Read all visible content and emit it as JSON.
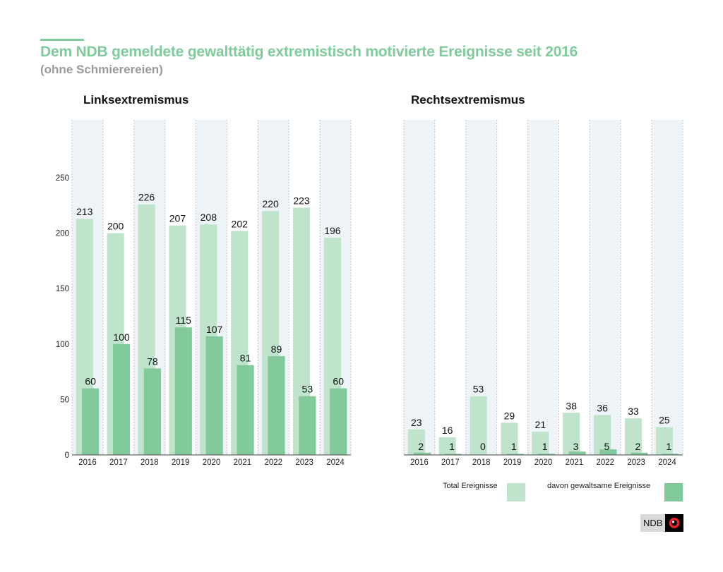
{
  "header": {
    "title": "Dem NDB gemeldete gewalttätig extremistisch motivierte Ereignisse seit 2016",
    "subtitle": "(ohne Schmierereien)"
  },
  "colors": {
    "accent": "#7fcb9b",
    "total": "#bfe3cb",
    "violent": "#82c99c",
    "band": "#eef3f7",
    "subtitle": "#9a9a9a"
  },
  "legend": {
    "total_label": "Total Ereignisse",
    "violent_label": "davon gewaltsame Ereignisse"
  },
  "logo": {
    "text": "NDB"
  },
  "chart_data": [
    {
      "type": "bar",
      "title": "Linksextremismus",
      "categories": [
        "2016",
        "2017",
        "2018",
        "2019",
        "2020",
        "2021",
        "2022",
        "2023",
        "2024"
      ],
      "series": [
        {
          "name": "Total Ereignisse",
          "values": [
            213,
            200,
            226,
            207,
            208,
            202,
            220,
            223,
            196
          ]
        },
        {
          "name": "davon gewaltsame Ereignisse",
          "values": [
            60,
            100,
            78,
            115,
            107,
            81,
            89,
            53,
            60
          ]
        }
      ],
      "yticks": [
        0,
        50,
        100,
        150,
        200,
        250
      ],
      "ylim": [
        0,
        290
      ],
      "xlabel": "",
      "ylabel": "",
      "grid": true
    },
    {
      "type": "bar",
      "title": "Rechtsextremismus",
      "categories": [
        "2016",
        "2017",
        "2018",
        "2019",
        "2020",
        "2021",
        "2022",
        "2023",
        "2024"
      ],
      "series": [
        {
          "name": "Total Ereignisse",
          "values": [
            23,
            16,
            53,
            29,
            21,
            38,
            36,
            33,
            25
          ]
        },
        {
          "name": "davon gewaltsame Ereignisse",
          "values": [
            2,
            1,
            0,
            1,
            1,
            3,
            5,
            2,
            1
          ]
        }
      ],
      "yticks": [],
      "ylim": [
        0,
        290
      ],
      "xlabel": "",
      "ylabel": "",
      "grid": true
    }
  ]
}
